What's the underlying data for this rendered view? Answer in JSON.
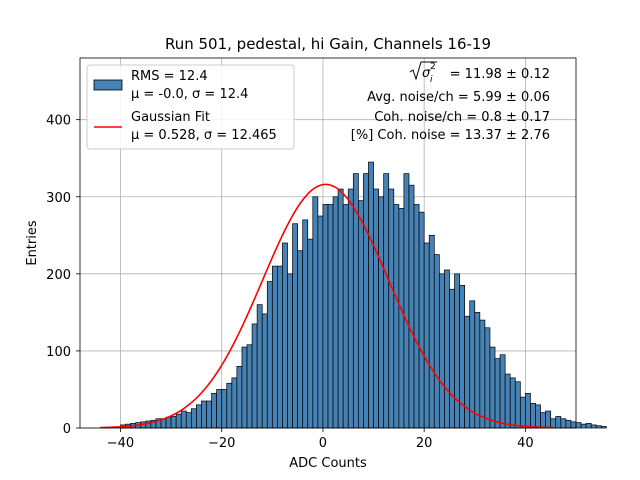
{
  "chart_data": {
    "type": "bar",
    "title": "Run 501, pedestal, hi Gain, Channels 16-19",
    "xlabel": "ADC Counts",
    "ylabel": "Entries",
    "xlim": [
      -48,
      50
    ],
    "ylim": [
      0,
      480
    ],
    "xticks": [
      -40,
      -20,
      0,
      20,
      40
    ],
    "yticks": [
      0,
      100,
      200,
      300,
      400
    ],
    "xtick_labels": [
      "−40",
      "−20",
      "0",
      "20",
      "40"
    ],
    "ytick_labels": [
      "0",
      "100",
      "200",
      "300",
      "400"
    ],
    "grid": true,
    "bar_color": "#4682b4",
    "fit_color": "#ff0000",
    "legend_position": "top-left",
    "legend": {
      "hist_line1": "RMS = 12.4",
      "hist_line2": "μ = -0.0, σ = 12.4",
      "fit_line1": "Gaussian Fit",
      "fit_line2": "μ = 0.528, σ = 12.465"
    },
    "annotations": {
      "line1_value": "= 11.98 ± 0.12",
      "line2": "Avg. noise/ch = 5.99 ± 0.06",
      "line3": "Coh. noise/ch = 0.8 ± 0.17",
      "line4": "[%] Coh. noise = 13.37 ± 2.76"
    },
    "bin_width": 1,
    "bin_start": -40,
    "series": [
      {
        "values": [
          4,
          5,
          6,
          7,
          8,
          9,
          10,
          12,
          12,
          14,
          15,
          18,
          22,
          20,
          25,
          30,
          35,
          35,
          45,
          50,
          50,
          58,
          65,
          80,
          105,
          108,
          135,
          160,
          148,
          190,
          210,
          210,
          240,
          200,
          265,
          230,
          270,
          245,
          300,
          275,
          290,
          290,
          300,
          310,
          290,
          310,
          330,
          295,
          330,
          345,
          310,
          300,
          330,
          310,
          290,
          285,
          330,
          315,
          290,
          280,
          240,
          250,
          225,
          200,
          205,
          180,
          200,
          185,
          145,
          165,
          150,
          140,
          130,
          105,
          90,
          95,
          70,
          65,
          60,
          40,
          45,
          32,
          30,
          20,
          22,
          12,
          15,
          12,
          10,
          8,
          7,
          5,
          6,
          4,
          3,
          2
        ],
        "fit": {
          "amplitude": 316,
          "mu": 0.528,
          "sigma": 12.465
        }
      }
    ]
  }
}
